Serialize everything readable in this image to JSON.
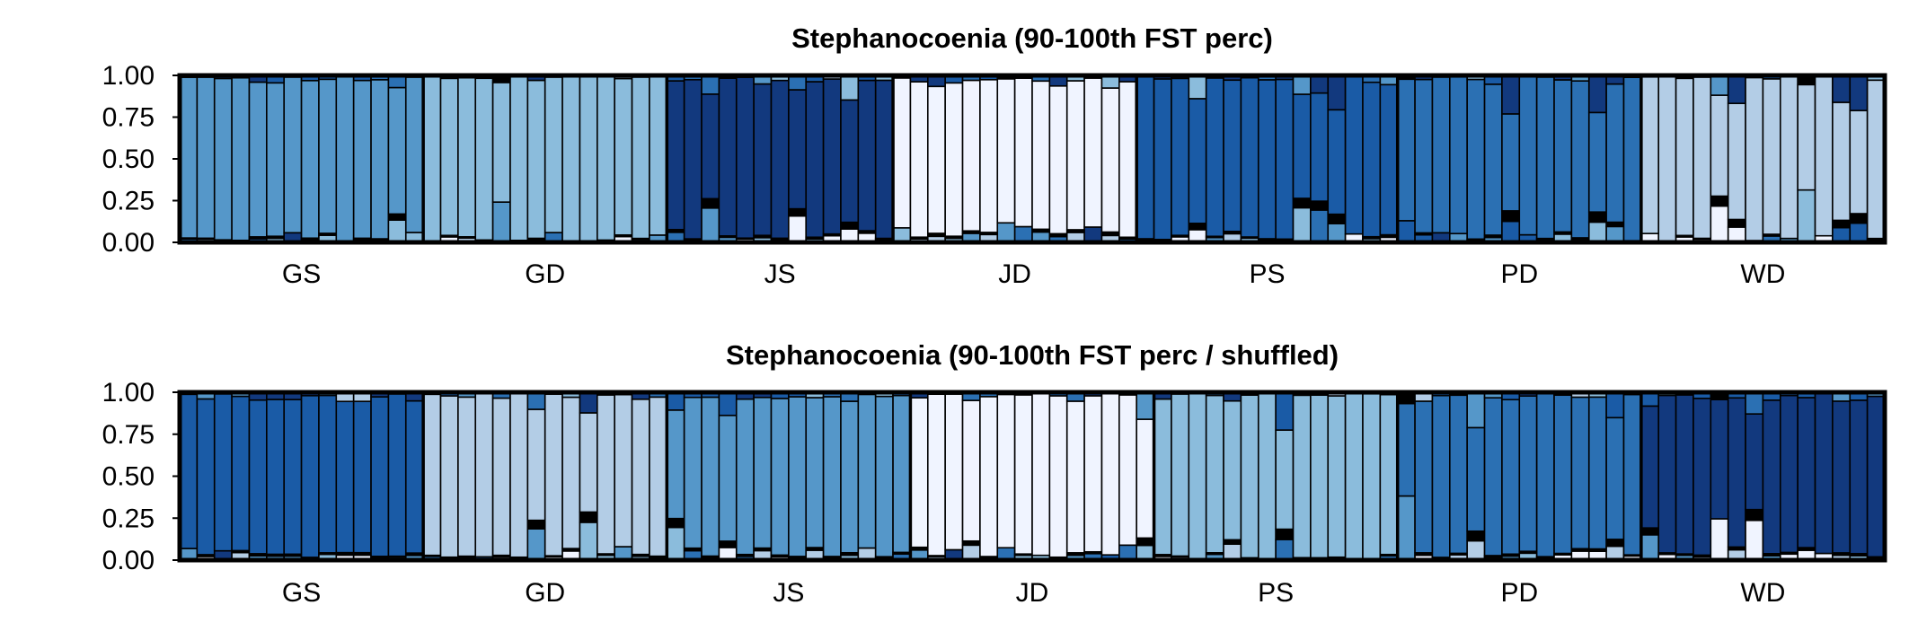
{
  "chart_data": [
    {
      "type": "bar",
      "stacked": true,
      "title": "Stephanocoenia (90-100th FST perc)",
      "ylim": [
        0,
        1
      ],
      "yticks": [
        "0.00",
        "0.25",
        "0.50",
        "0.75",
        "1.00"
      ],
      "groups": [
        {
          "label": "GS",
          "individuals": 14
        },
        {
          "label": "GD",
          "individuals": 14
        },
        {
          "label": "JS",
          "individuals": 13
        },
        {
          "label": "JD",
          "individuals": 14
        },
        {
          "label": "PS",
          "individuals": 15
        },
        {
          "label": "PD",
          "individuals": 14
        },
        {
          "label": "WD",
          "individuals": 14
        }
      ],
      "cluster_colors": [
        "#f0f4ff",
        "#b3cde6",
        "#8bbcdc",
        "#5597c9",
        "#2b70b3",
        "#1a5ba6",
        "#12397e",
        "#000000"
      ],
      "dominant_cluster": [
        3,
        2,
        6,
        0,
        5,
        4,
        1
      ],
      "dominant_share": [
        0.95,
        0.97,
        0.93,
        0.9,
        0.93,
        0.94,
        0.96
      ]
    },
    {
      "type": "bar",
      "stacked": true,
      "title": "Stephanocoenia (90-100th FST perc / shuffled)",
      "ylim": [
        0,
        1
      ],
      "yticks": [
        "0.00",
        "0.25",
        "0.50",
        "0.75",
        "1.00"
      ],
      "groups": [
        {
          "label": "GS",
          "individuals": 14
        },
        {
          "label": "GD",
          "individuals": 14
        },
        {
          "label": "JS",
          "individuals": 14
        },
        {
          "label": "JD",
          "individuals": 14
        },
        {
          "label": "PS",
          "individuals": 14
        },
        {
          "label": "PD",
          "individuals": 14
        },
        {
          "label": "WD",
          "individuals": 14
        }
      ],
      "cluster_colors": [
        "#f0f4ff",
        "#b3cde6",
        "#8bbcdc",
        "#5597c9",
        "#2b70b3",
        "#1a5ba6",
        "#12397e",
        "#000000"
      ],
      "dominant_cluster": [
        5,
        1,
        3,
        0,
        2,
        4,
        6
      ],
      "dominant_share": [
        0.93,
        0.94,
        0.92,
        0.93,
        0.95,
        0.94,
        0.92
      ]
    }
  ]
}
